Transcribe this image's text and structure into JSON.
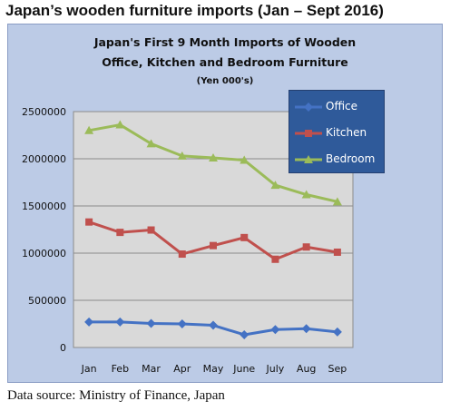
{
  "page_title": "Japan’s wooden furniture imports (Jan – Sept 2016)",
  "source": "Data source: Ministry of Finance, Japan",
  "chart_data": {
    "type": "line",
    "title_lines": [
      "Japan's First 9 Month Imports of  Wooden",
      "Office, Kitchen and Bedroom Furniture",
      "(Yen 000's)"
    ],
    "categories": [
      "Jan",
      "Feb",
      "Mar",
      "Apr",
      "May",
      "June",
      "July",
      "Aug",
      "Sep"
    ],
    "ylim": [
      0,
      2500000
    ],
    "yticks": [
      0,
      500000,
      1000000,
      1500000,
      2000000,
      2500000
    ],
    "ytick_labels": [
      "0",
      "500000",
      "1000000",
      "1500000",
      "2000000",
      "2500000"
    ],
    "grid": true,
    "legend_position": "top-right",
    "series": [
      {
        "name": "Office",
        "color": "#4472c4",
        "marker": "diamond",
        "values": [
          270000,
          270000,
          255000,
          250000,
          235000,
          135000,
          190000,
          200000,
          165000
        ]
      },
      {
        "name": "Kitchen",
        "color": "#c0504d",
        "marker": "square",
        "values": [
          1330000,
          1220000,
          1245000,
          990000,
          1080000,
          1165000,
          935000,
          1065000,
          1010000
        ]
      },
      {
        "name": "Bedroom",
        "color": "#9bbb59",
        "marker": "triangle",
        "values": [
          2300000,
          2360000,
          2160000,
          2030000,
          2010000,
          1985000,
          1720000,
          1620000,
          1545000
        ]
      }
    ]
  }
}
